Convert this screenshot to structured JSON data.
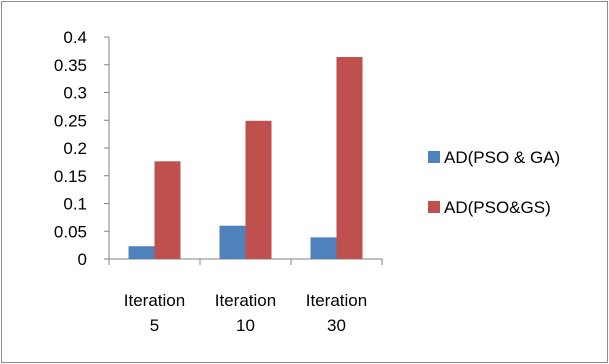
{
  "chart_data": {
    "type": "bar",
    "categories": [
      "Iteration 5",
      "Iteration 10",
      "Iteration 30"
    ],
    "category_lines": [
      [
        "Iteration",
        "5"
      ],
      [
        "Iteration",
        "10"
      ],
      [
        "Iteration",
        "30"
      ]
    ],
    "series": [
      {
        "name": "AD(PSO & GA)",
        "values": [
          0.023,
          0.06,
          0.039
        ],
        "color": "#4f81bd"
      },
      {
        "name": "AD(PSO&GS)",
        "values": [
          0.176,
          0.249,
          0.364
        ],
        "color": "#c0504d"
      }
    ],
    "ylim": [
      0,
      0.4
    ],
    "yticks": [
      "0",
      "0.05",
      "0.1",
      "0.15",
      "0.2",
      "0.25",
      "0.3",
      "0.35",
      "0.4"
    ],
    "grid": false,
    "legend_position": "right",
    "title": "",
    "xlabel": "",
    "ylabel": ""
  }
}
